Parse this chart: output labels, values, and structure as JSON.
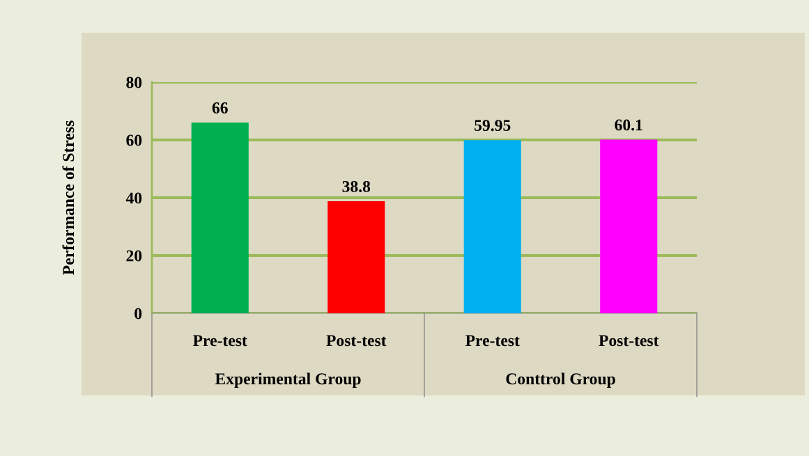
{
  "chart_data": {
    "type": "bar",
    "ylabel": "Performance of Stress",
    "categories": [
      "Pre-test",
      "Post-test",
      "Pre-test",
      "Post-test"
    ],
    "values": [
      66,
      38.8,
      59.95,
      60.1
    ],
    "colors": [
      "#00b050",
      "#ff0000",
      "#00b0f0",
      "#ff00ff"
    ],
    "ylim": [
      0,
      80
    ],
    "yticks": [
      0,
      20,
      40,
      60,
      80
    ],
    "grid": "y",
    "data_labels": true,
    "annotations": [
      "Experimental Group",
      "Conttrol Group"
    ]
  }
}
